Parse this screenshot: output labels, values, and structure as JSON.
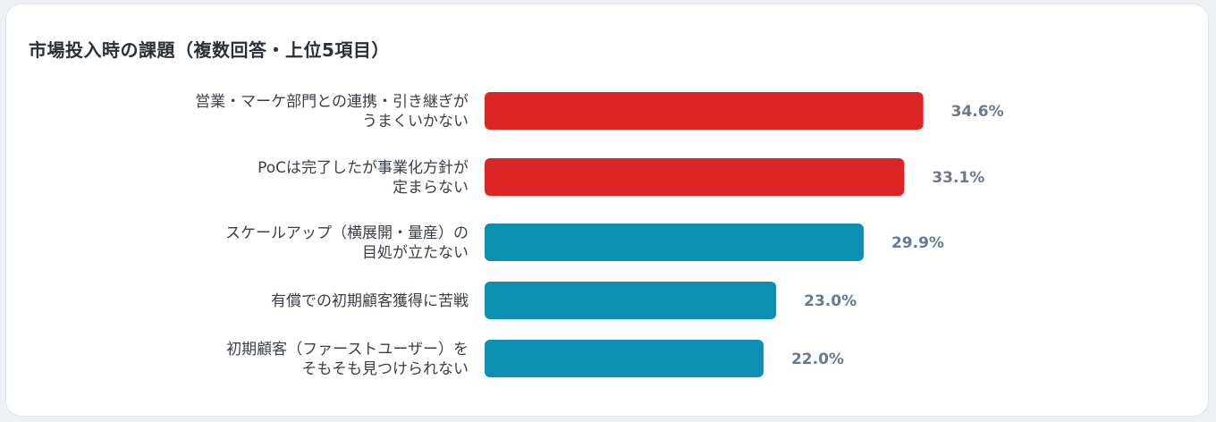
{
  "chart_data": {
    "type": "bar",
    "orientation": "horizontal",
    "title": "市場投入時の課題（複数回答・上位5項目）",
    "categories": [
      [
        "営業・マーケ部門との連携・引き継ぎが",
        "うまくいかない"
      ],
      [
        "PoCは完了したが事業化方針が",
        "定まらない"
      ],
      [
        "スケールアップ（横展開・量産）の",
        "目処が立たない"
      ],
      [
        "有償での初期顧客獲得に苦戦"
      ],
      [
        "初期顧客（ファーストユーザー）を",
        "そもそも見つけられない"
      ]
    ],
    "values": [
      34.6,
      33.1,
      29.9,
      23.0,
      22.0
    ],
    "value_labels": [
      "34.6%",
      "33.1%",
      "29.9%",
      "23.0%",
      "22.0%"
    ],
    "bar_colors": [
      "#dc2626",
      "#dc2626",
      "#0b8fb3",
      "#0b8fb3",
      "#0b8fb3"
    ],
    "xlim": [
      0,
      40
    ],
    "grid": false,
    "legend": "none"
  }
}
